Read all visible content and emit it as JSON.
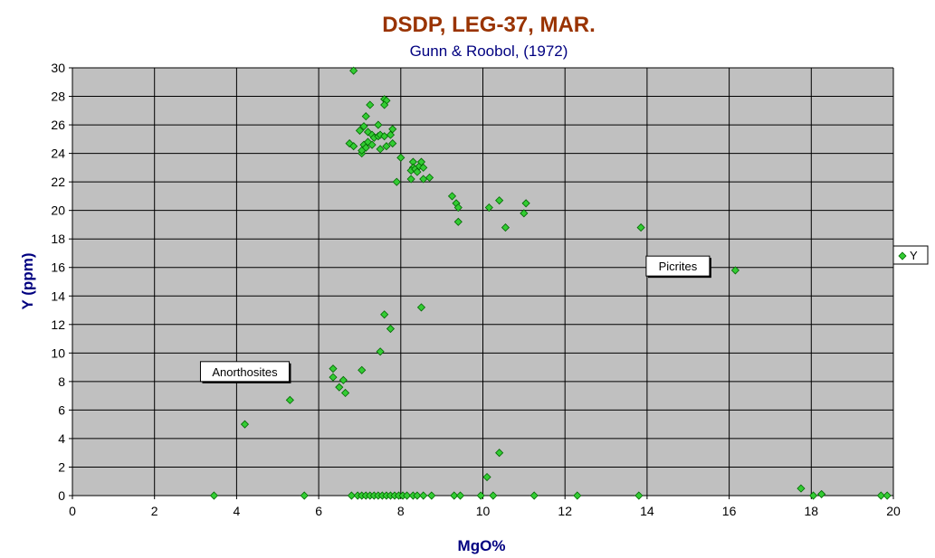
{
  "chart_data": {
    "type": "scatter",
    "title": "DSDP, LEG-37, MAR.",
    "subtitle": "Gunn & Roobol, (1972)",
    "xlabel": "MgO%",
    "ylabel": "Y (ppm)",
    "xlim": [
      0,
      20
    ],
    "ylim": [
      0,
      30
    ],
    "x_ticks": [
      0,
      2,
      4,
      6,
      8,
      10,
      12,
      14,
      16,
      18,
      20
    ],
    "y_ticks": [
      0,
      2,
      4,
      6,
      8,
      10,
      12,
      14,
      16,
      18,
      20,
      22,
      24,
      26,
      28,
      30
    ],
    "grid": true,
    "legend_position": "right",
    "marker": "diamond",
    "colors": {
      "title": "#993300",
      "subtitle": "#000080",
      "axis_title": "#000080",
      "plot_background": "#c0c0c0",
      "marker_fill": "#33cc33",
      "marker_stroke": "#006600"
    },
    "series": [
      {
        "name": "Y",
        "points": [
          [
            6.85,
            29.8
          ],
          [
            7.6,
            27.8
          ],
          [
            7.65,
            27.7
          ],
          [
            7.6,
            27.4
          ],
          [
            7.25,
            27.4
          ],
          [
            7.15,
            26.6
          ],
          [
            7.1,
            25.9
          ],
          [
            7.0,
            25.6
          ],
          [
            7.2,
            25.5
          ],
          [
            7.45,
            26.0
          ],
          [
            7.3,
            25.3
          ],
          [
            7.35,
            25.1
          ],
          [
            7.45,
            25.2
          ],
          [
            7.5,
            25.3
          ],
          [
            7.6,
            25.2
          ],
          [
            7.8,
            25.7
          ],
          [
            7.75,
            25.3
          ],
          [
            7.8,
            24.7
          ],
          [
            6.75,
            24.7
          ],
          [
            6.85,
            24.5
          ],
          [
            7.1,
            24.6
          ],
          [
            7.15,
            24.4
          ],
          [
            7.2,
            24.8
          ],
          [
            7.3,
            24.6
          ],
          [
            7.5,
            24.3
          ],
          [
            7.05,
            24.0
          ],
          [
            7.05,
            24.2
          ],
          [
            7.65,
            24.5
          ],
          [
            8.0,
            23.7
          ],
          [
            8.3,
            23.4
          ],
          [
            8.3,
            23.0
          ],
          [
            8.25,
            22.8
          ],
          [
            8.35,
            22.9
          ],
          [
            8.4,
            22.7
          ],
          [
            8.45,
            23.1
          ],
          [
            8.5,
            23.4
          ],
          [
            8.55,
            23.0
          ],
          [
            8.55,
            22.2
          ],
          [
            8.7,
            22.3
          ],
          [
            8.25,
            22.2
          ],
          [
            7.9,
            22.0
          ],
          [
            9.25,
            21.0
          ],
          [
            9.35,
            20.5
          ],
          [
            9.4,
            20.2
          ],
          [
            9.4,
            19.2
          ],
          [
            10.15,
            20.2
          ],
          [
            10.4,
            20.7
          ],
          [
            10.55,
            18.8
          ],
          [
            11.05,
            20.5
          ],
          [
            11.0,
            19.8
          ],
          [
            13.85,
            18.8
          ],
          [
            16.15,
            15.8
          ],
          [
            8.5,
            13.2
          ],
          [
            7.6,
            12.7
          ],
          [
            7.75,
            11.7
          ],
          [
            7.5,
            10.1
          ],
          [
            6.35,
            8.9
          ],
          [
            6.35,
            8.3
          ],
          [
            7.05,
            8.8
          ],
          [
            6.6,
            8.1
          ],
          [
            6.5,
            7.6
          ],
          [
            6.65,
            7.2
          ],
          [
            5.3,
            6.7
          ],
          [
            4.2,
            5.0
          ],
          [
            10.4,
            3.0
          ],
          [
            10.1,
            1.3
          ],
          [
            17.75,
            0.5
          ],
          [
            18.25,
            0.1
          ],
          [
            3.45,
            0
          ],
          [
            5.65,
            0
          ],
          [
            6.8,
            0
          ],
          [
            6.95,
            0
          ],
          [
            7.05,
            0
          ],
          [
            7.15,
            0
          ],
          [
            7.25,
            0
          ],
          [
            7.35,
            0
          ],
          [
            7.45,
            0
          ],
          [
            7.55,
            0
          ],
          [
            7.65,
            0
          ],
          [
            7.75,
            0
          ],
          [
            7.85,
            0
          ],
          [
            7.95,
            0
          ],
          [
            8.05,
            0
          ],
          [
            8.15,
            0
          ],
          [
            8.3,
            0
          ],
          [
            8.4,
            0
          ],
          [
            8.55,
            0
          ],
          [
            8.75,
            0
          ],
          [
            9.3,
            0
          ],
          [
            9.45,
            0
          ],
          [
            9.95,
            0
          ],
          [
            10.25,
            0
          ],
          [
            11.25,
            0
          ],
          [
            12.3,
            0
          ],
          [
            13.8,
            0
          ],
          [
            18.05,
            0
          ],
          [
            19.7,
            0
          ],
          [
            19.85,
            0
          ]
        ]
      }
    ],
    "annotations": [
      {
        "text": "Anorthosites",
        "x": 4.2,
        "y": 8.7
      },
      {
        "text": "Picrites",
        "x": 14.75,
        "y": 16.1
      }
    ]
  }
}
